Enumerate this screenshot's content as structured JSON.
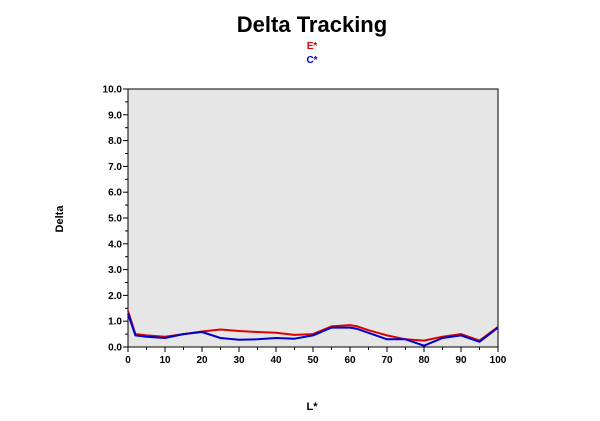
{
  "chart_data": {
    "type": "line",
    "title": "Delta Tracking",
    "xlabel": "L*",
    "ylabel": "Delta",
    "xlim": [
      0,
      100
    ],
    "ylim": [
      0,
      10
    ],
    "x_ticks": [
      0,
      10,
      20,
      30,
      40,
      50,
      60,
      70,
      80,
      90,
      100
    ],
    "y_ticks": [
      "0.0",
      "1.0",
      "2.0",
      "3.0",
      "4.0",
      "5.0",
      "6.0",
      "7.0",
      "8.0",
      "9.0",
      "10.0"
    ],
    "grid": false,
    "legend_position": "top-center",
    "plot_background": "#e6e6e6",
    "series": [
      {
        "name": "E*",
        "color": "#dd0000",
        "x": [
          0,
          2,
          5,
          10,
          15,
          20,
          25,
          30,
          35,
          40,
          45,
          50,
          55,
          60,
          62,
          65,
          70,
          75,
          80,
          85,
          90,
          95,
          100
        ],
        "y": [
          1.4,
          0.5,
          0.45,
          0.4,
          0.5,
          0.6,
          0.68,
          0.62,
          0.58,
          0.55,
          0.47,
          0.5,
          0.8,
          0.85,
          0.8,
          0.65,
          0.45,
          0.3,
          0.25,
          0.4,
          0.5,
          0.25,
          0.78
        ]
      },
      {
        "name": "C*",
        "color": "#0000cc",
        "x": [
          0,
          2,
          5,
          10,
          15,
          20,
          25,
          30,
          35,
          40,
          45,
          50,
          55,
          60,
          62,
          65,
          70,
          75,
          80,
          85,
          90,
          95,
          100
        ],
        "y": [
          1.3,
          0.45,
          0.4,
          0.35,
          0.5,
          0.58,
          0.35,
          0.28,
          0.3,
          0.35,
          0.32,
          0.45,
          0.75,
          0.75,
          0.7,
          0.55,
          0.3,
          0.3,
          0.05,
          0.35,
          0.45,
          0.2,
          0.75
        ]
      }
    ]
  }
}
